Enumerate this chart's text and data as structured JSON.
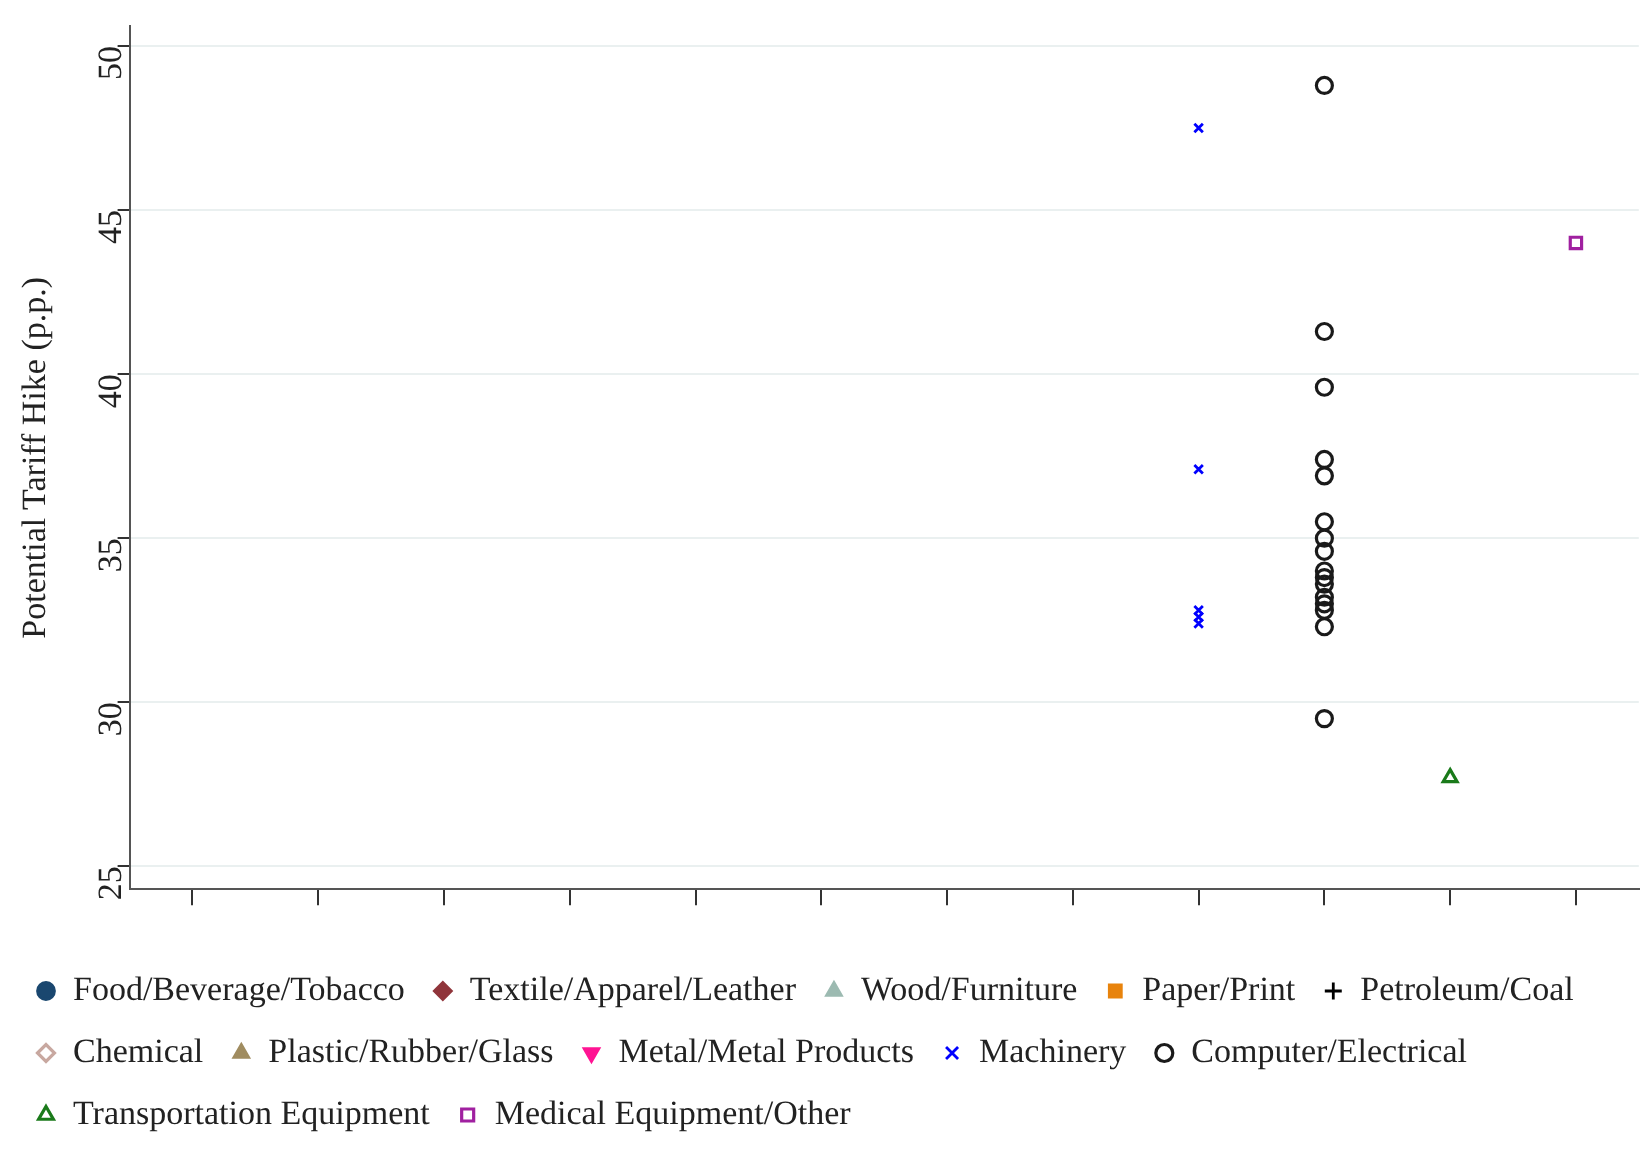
{
  "chart_data": {
    "type": "scatter",
    "ylabel": "Potential Tariff Hike (p.p.)",
    "categories": [
      null,
      null,
      null,
      null,
      null,
      null,
      null,
      null,
      null,
      null,
      null,
      null
    ],
    "ylim": [
      24.3,
      50.6
    ],
    "yticks": [
      25,
      30,
      35,
      40,
      45,
      50
    ],
    "grid": "y",
    "legend": "bottom",
    "series": [
      {
        "name": "Food/Beverage/Tobacco",
        "color": "#1a476f",
        "marker": "circle",
        "values": [
          null,
          null,
          null,
          null,
          null,
          null,
          null,
          null,
          null,
          null,
          null,
          null
        ]
      },
      {
        "name": "Textile/Apparel/Leather",
        "color": "#90353b",
        "marker": "diamond",
        "values": [
          null,
          null,
          null,
          null,
          null,
          null,
          null,
          null,
          null,
          null,
          null,
          null
        ]
      },
      {
        "name": "Wood/Furniture",
        "color": "#9cbab1",
        "marker": "triangle",
        "values": [
          null,
          null,
          null,
          null,
          null,
          null,
          null,
          null,
          null,
          null,
          null,
          null
        ]
      },
      {
        "name": "Paper/Print",
        "color": "#e8830c",
        "marker": "square",
        "values": [
          null,
          null,
          null,
          null,
          null,
          null,
          null,
          null,
          null,
          null,
          null,
          null
        ]
      },
      {
        "name": "Petroleum/Coal",
        "color": "#000000",
        "marker": "plus",
        "values": [
          null,
          null,
          null,
          null,
          null,
          null,
          null,
          null,
          null,
          null,
          null,
          null
        ]
      },
      {
        "name": "Chemical",
        "color": "#c8a8a0",
        "marker": "diamond-open",
        "values": [
          null,
          null,
          null,
          null,
          null,
          null,
          null,
          null,
          null,
          null,
          null,
          null
        ]
      },
      {
        "name": "Plastic/Rubber/Glass",
        "color": "#a08c60",
        "marker": "triangle",
        "values": [
          null,
          null,
          null,
          null,
          null,
          null,
          null,
          null,
          null,
          null,
          null,
          null
        ]
      },
      {
        "name": "Metal/Metal Products",
        "color": "#ff1493",
        "marker": "triangle-down",
        "values": [
          null,
          null,
          null,
          null,
          null,
          null,
          null,
          null,
          null,
          null,
          null,
          null
        ]
      },
      {
        "name": "Machinery",
        "color": "#0000ff",
        "marker": "cross",
        "values": [
          null,
          null,
          null,
          null,
          null,
          null,
          null,
          null,
          47.5,
          null,
          null,
          null
        ]
      },
      {
        "name": "Computer/Electrical",
        "color": "#1a1a1a",
        "marker": "circle-open",
        "values": [
          null,
          null,
          null,
          null,
          null,
          null,
          null,
          null,
          null,
          48.8,
          null,
          null
        ]
      },
      {
        "name": "Transportation Equipment",
        "color": "#1a7a1a",
        "marker": "triangle-open",
        "values": [
          null,
          null,
          null,
          null,
          null,
          null,
          null,
          null,
          null,
          null,
          27.7,
          null
        ]
      },
      {
        "name": "Medical Equipment/Other",
        "color": "#a020a0",
        "marker": "square-open",
        "values": [
          null,
          null,
          null,
          null,
          null,
          null,
          null,
          null,
          null,
          null,
          null,
          44.0
        ]
      },
      {
        "color": "#0000ff",
        "marker": "cross",
        "values": [
          null,
          null,
          null,
          null,
          null,
          null,
          null,
          null,
          37.1,
          null,
          null,
          null
        ]
      },
      {
        "color": "#0000ff",
        "marker": "cross",
        "values": [
          null,
          null,
          null,
          null,
          null,
          null,
          null,
          null,
          32.8,
          null,
          null,
          null
        ]
      },
      {
        "color": "#0000ff",
        "marker": "cross",
        "values": [
          null,
          null,
          null,
          null,
          null,
          null,
          null,
          null,
          32.6,
          null,
          null,
          null
        ]
      },
      {
        "color": "#0000ff",
        "marker": "cross",
        "values": [
          null,
          null,
          null,
          null,
          null,
          null,
          null,
          null,
          32.4,
          null,
          null,
          null
        ]
      },
      {
        "color": "#1a1a1a",
        "marker": "circle-open",
        "values": [
          null,
          null,
          null,
          null,
          null,
          null,
          null,
          null,
          null,
          41.3,
          null,
          null
        ]
      },
      {
        "color": "#1a1a1a",
        "marker": "circle-open",
        "values": [
          null,
          null,
          null,
          null,
          null,
          null,
          null,
          null,
          null,
          39.6,
          null,
          null
        ]
      },
      {
        "color": "#1a1a1a",
        "marker": "circle-open",
        "values": [
          null,
          null,
          null,
          null,
          null,
          null,
          null,
          null,
          null,
          37.4,
          null,
          null
        ]
      },
      {
        "color": "#1a1a1a",
        "marker": "circle-open",
        "values": [
          null,
          null,
          null,
          null,
          null,
          null,
          null,
          null,
          null,
          36.9,
          null,
          null
        ]
      },
      {
        "color": "#1a1a1a",
        "marker": "circle-open",
        "values": [
          null,
          null,
          null,
          null,
          null,
          null,
          null,
          null,
          null,
          35.5,
          null,
          null
        ]
      },
      {
        "color": "#1a1a1a",
        "marker": "circle-open",
        "values": [
          null,
          null,
          null,
          null,
          null,
          null,
          null,
          null,
          null,
          35.0,
          null,
          null
        ]
      },
      {
        "color": "#1a1a1a",
        "marker": "circle-open",
        "values": [
          null,
          null,
          null,
          null,
          null,
          null,
          null,
          null,
          null,
          34.6,
          null,
          null
        ]
      },
      {
        "color": "#1a1a1a",
        "marker": "circle-open",
        "values": [
          null,
          null,
          null,
          null,
          null,
          null,
          null,
          null,
          null,
          34.0,
          null,
          null
        ]
      },
      {
        "color": "#1a1a1a",
        "marker": "circle-open",
        "values": [
          null,
          null,
          null,
          null,
          null,
          null,
          null,
          null,
          null,
          33.8,
          null,
          null
        ]
      },
      {
        "color": "#1a1a1a",
        "marker": "circle-open",
        "values": [
          null,
          null,
          null,
          null,
          null,
          null,
          null,
          null,
          null,
          33.6,
          null,
          null
        ]
      },
      {
        "color": "#1a1a1a",
        "marker": "circle-open",
        "values": [
          null,
          null,
          null,
          null,
          null,
          null,
          null,
          null,
          null,
          33.2,
          null,
          null
        ]
      },
      {
        "color": "#1a1a1a",
        "marker": "circle-open",
        "values": [
          null,
          null,
          null,
          null,
          null,
          null,
          null,
          null,
          null,
          33.0,
          null,
          null
        ]
      },
      {
        "color": "#1a1a1a",
        "marker": "circle-open",
        "values": [
          null,
          null,
          null,
          null,
          null,
          null,
          null,
          null,
          null,
          32.8,
          null,
          null
        ]
      },
      {
        "color": "#1a1a1a",
        "marker": "circle-open",
        "values": [
          null,
          null,
          null,
          null,
          null,
          null,
          null,
          null,
          null,
          32.3,
          null,
          null
        ]
      },
      {
        "color": "#1a1a1a",
        "marker": "circle-open",
        "values": [
          null,
          null,
          null,
          null,
          null,
          null,
          null,
          null,
          null,
          29.5,
          null,
          null
        ]
      }
    ]
  }
}
